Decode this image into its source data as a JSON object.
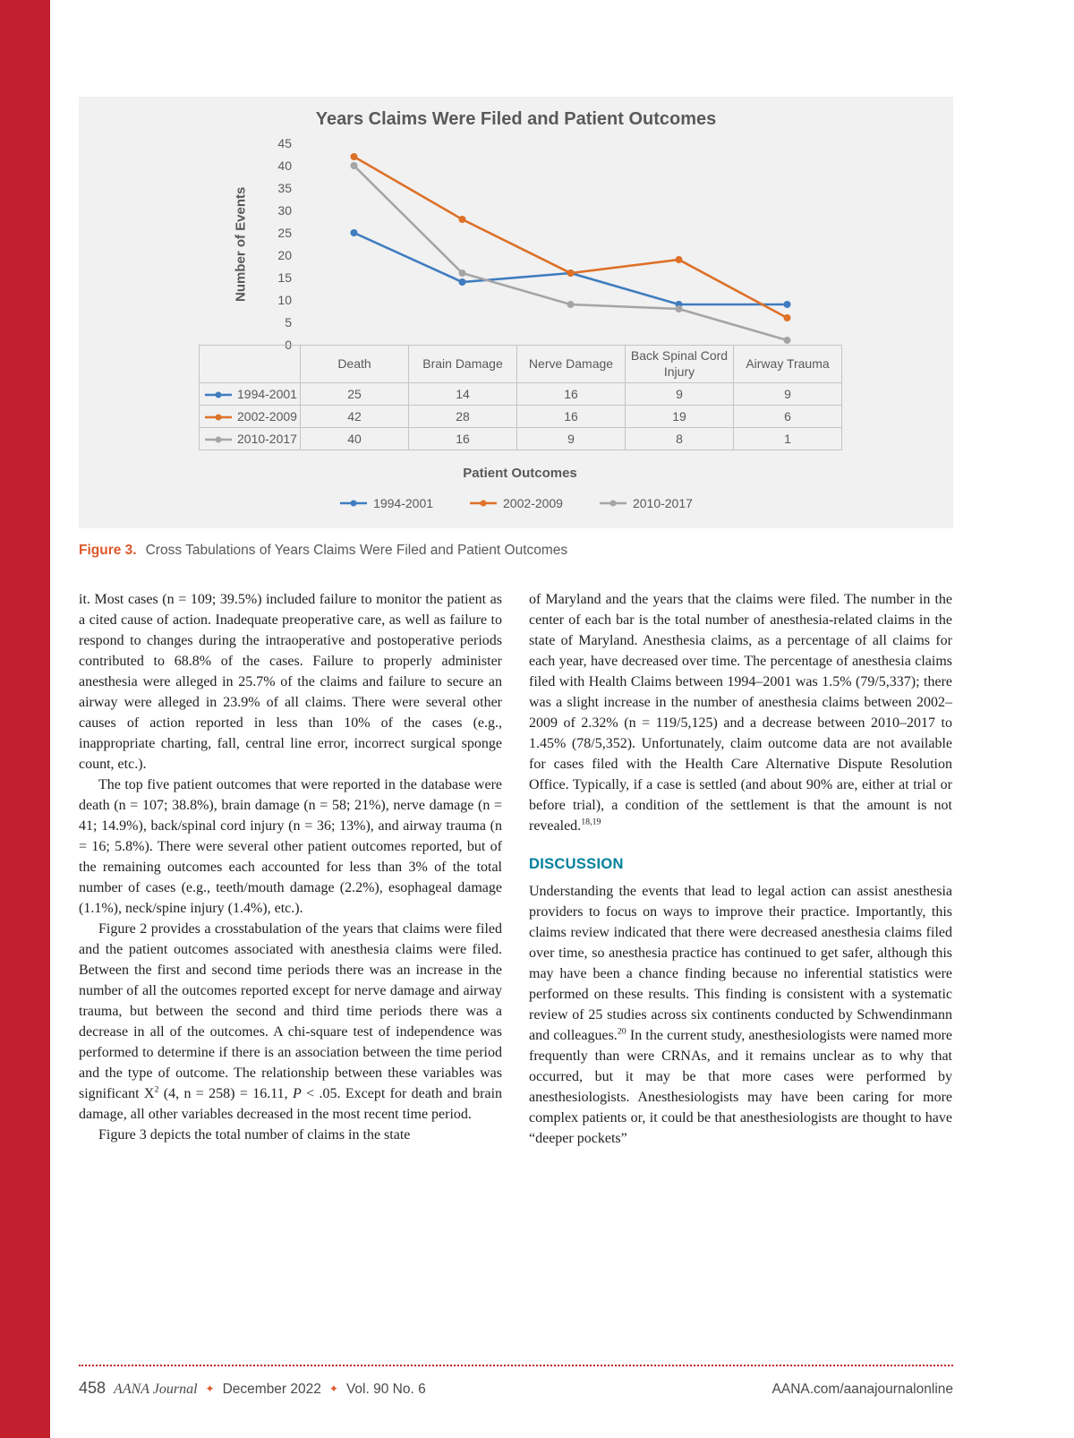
{
  "theme": {
    "strip_red": "#C2202F",
    "accent_orange": "#DB5A2A",
    "heading_teal": "#00809B",
    "chart_text_gray": "#595959"
  },
  "chart_data": {
    "type": "line",
    "title": "Years Claims Were Filed and Patient Outcomes",
    "xlabel": "Patient Outcomes",
    "ylabel": "Number of Events",
    "ylim": [
      0,
      45
    ],
    "ytick_step": 5,
    "grid": false,
    "legend_position": "bottom",
    "data_table_shown": true,
    "categories": [
      "Death",
      "Brain Damage",
      "Nerve Damage",
      "Back Spinal Cord Injury",
      "Airway Trauma"
    ],
    "series": [
      {
        "name": "1994-2001",
        "color": "#3F7CBF",
        "values": [
          25,
          14,
          16,
          9,
          9
        ]
      },
      {
        "name": "2002-2009",
        "color": "#DD7127",
        "values": [
          42,
          28,
          16,
          19,
          6
        ]
      },
      {
        "name": "2010-2017",
        "color": "#A5A5A5",
        "values": [
          40,
          16,
          9,
          8,
          1
        ]
      }
    ]
  },
  "figure": {
    "caption_label": "Figure 3.",
    "caption_text": "Cross Tabulations of Years Claims Were Filed and Patient Outcomes"
  },
  "body": {
    "left": {
      "p1": "it. Most cases (n = 109; 39.5%) included failure to monitor the patient as a cited cause of action. Inadequate preoperative care, as well as failure to respond to changes during the intraoperative and postoperative periods contributed to 68.8% of the cases. Failure to properly administer anesthesia were alleged in 25.7% of the claims and failure to secure an airway were alleged in 23.9% of all claims. There were several other causes of action reported in less than 10% of the cases (e.g., inappropriate charting, fall, central line error, incorrect surgical sponge count, etc.).",
      "p2": "The top five patient outcomes that were reported in the database were death (n = 107; 38.8%), brain damage (n = 58; 21%), nerve damage (n = 41; 14.9%), back/spinal cord injury (n = 36; 13%), and airway trauma (n = 16; 5.8%). There were several other patient outcomes reported, but of the remaining outcomes each accounted for less than 3% of the total number of cases (e.g., teeth/mouth damage (2.2%), esophageal damage (1.1%), neck/spine injury (1.4%), etc.).",
      "p3_a": "Figure 2 provides a crosstabulation of the years that claims were filed and the patient outcomes associated with anesthesia claims were filed. Between the first and second time periods there was an increase in the number of all the outcomes reported except for nerve damage and airway trauma, but between the second and third time periods there was a decrease in all of the outcomes. A chi-square test of independence was performed to determine if there is an association between the time period and the type of outcome. The relationship between these variables was significant X",
      "p3_sup": "2",
      "p3_b": " (4, n = 258) = 16.11, ",
      "p3_i": "P",
      "p3_c": " < .05. Except for death and brain damage, all other variables decreased in the most recent time period.",
      "p4": "Figure 3 depicts the total number of claims in the state"
    },
    "right": {
      "p1_a": "of Maryland and the years that the claims were filed. The number in the center of each bar is the total number of anesthesia-related claims in the state of Maryland. Anesthesia claims, as a percentage of all claims for each year, have decreased over time. The percentage of anesthesia claims filed with Health Claims between 1994–2001 was 1.5% (79/5,337); there was a slight increase in the number of anesthesia claims between 2002–2009 of 2.32% (n = 119/5,125) and a decrease between 2010–2017 to 1.45% (78/5,352). Unfortunately, claim outcome data are not available for cases filed with the Health Care Alternative Dispute Resolution Office. Typically, if a case is settled (and about 90% are, either at trial or before trial), a condition of the settlement is that the amount is not revealed.",
      "p1_sup": "18,19",
      "heading": "DISCUSSION",
      "p2_a": "Understanding the events that lead to legal action can assist anesthesia providers to focus on ways to improve their practice. Importantly, this claims review indicated that there were decreased anesthesia claims filed over time, so anesthesia practice has continued to get safer, although this may have been a chance finding because no inferential statistics were performed on these results. This finding is consistent with a systematic review of 25 studies across six continents conducted by Schwendinmann and colleagues.",
      "p2_sup": "20",
      "p2_b": " In the current study, anesthesiologists were named more frequently than were CRNAs, and it remains unclear as to why that occurred, but it may be that more cases were performed by anesthesiologists. Anesthesiologists may have been caring for more complex patients or, it could be that anesthesiologists are thought to have “deeper pockets”"
    }
  },
  "footer": {
    "page_number": "458",
    "journal_name": "AANA Journal",
    "separator": "✦",
    "issue_date": "December 2022",
    "volume": "Vol. 90 No. 6",
    "website": "AANA.com/aanajournalonline"
  }
}
